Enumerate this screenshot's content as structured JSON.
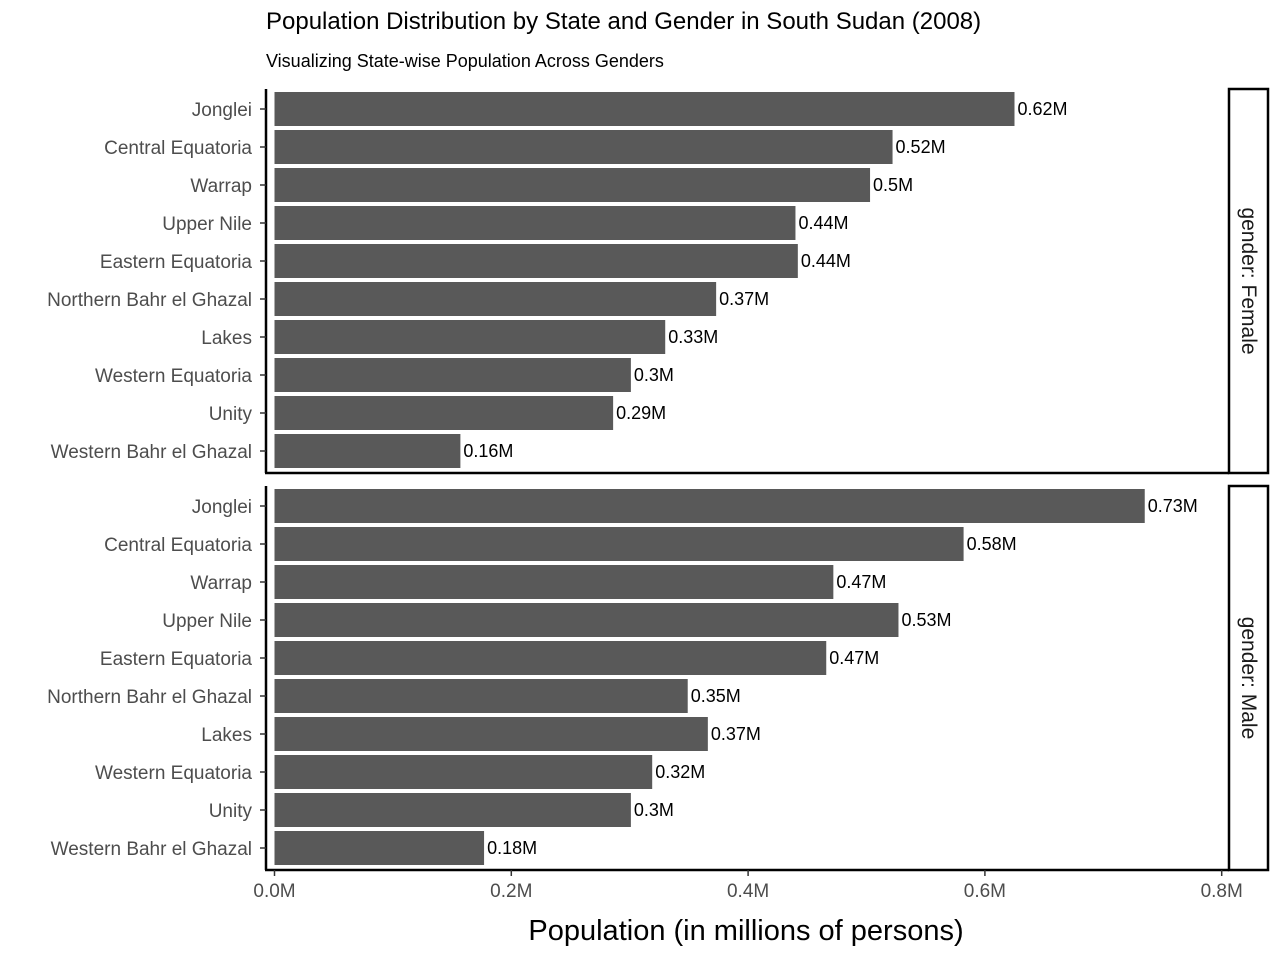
{
  "chart_data": {
    "type": "bar",
    "orientation": "horizontal",
    "title": "Population Distribution by State and Gender in South Sudan (2008)",
    "subtitle": "Visualizing State-wise Population Across Genders",
    "xlabel": "Population (in millions of persons)",
    "ylabel": "",
    "xlim": [
      0,
      0.8
    ],
    "x_ticks": [
      0,
      0.2,
      0.4,
      0.6,
      0.8
    ],
    "x_tick_labels": [
      "0.0M",
      "0.2M",
      "0.4M",
      "0.6M",
      "0.8M"
    ],
    "grid": false,
    "legend": "none",
    "bar_color": "#595959",
    "categories": [
      "Jonglei",
      "Central Equatoria",
      "Warrap",
      "Upper Nile",
      "Eastern Equatoria",
      "Northern Bahr el Ghazal",
      "Lakes",
      "Western Equatoria",
      "Unity",
      "Western Bahr el Ghazal"
    ],
    "facets": [
      {
        "strip_label": "gender: Female",
        "values": [
          0.625,
          0.522,
          0.503,
          0.44,
          0.442,
          0.373,
          0.33,
          0.301,
          0.286,
          0.157
        ],
        "data_labels": [
          "0.62M",
          "0.52M",
          "0.5M",
          "0.44M",
          "0.44M",
          "0.37M",
          "0.33M",
          "0.3M",
          "0.29M",
          "0.16M"
        ]
      },
      {
        "strip_label": "gender: Male",
        "values": [
          0.735,
          0.582,
          0.472,
          0.527,
          0.466,
          0.349,
          0.366,
          0.319,
          0.301,
          0.177
        ],
        "data_labels": [
          "0.73M",
          "0.58M",
          "0.47M",
          "0.53M",
          "0.47M",
          "0.35M",
          "0.37M",
          "0.32M",
          "0.3M",
          "0.18M"
        ]
      }
    ]
  }
}
